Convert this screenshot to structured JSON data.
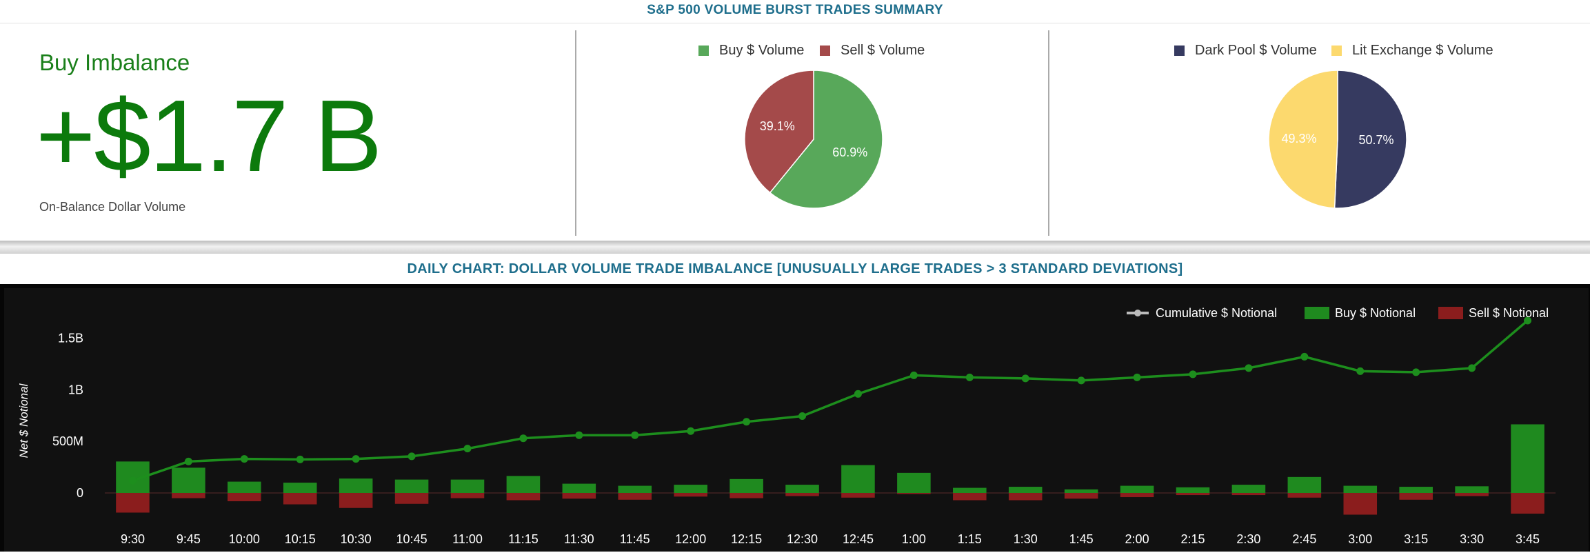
{
  "header": {
    "title": "S&P 500 VOLUME BURST TRADES SUMMARY"
  },
  "kpi": {
    "label": "Buy Imbalance",
    "value": "+$1.7 B",
    "sublabel": "On-Balance Dollar Volume"
  },
  "colors": {
    "title": "#1e6e8c",
    "buy": "#58a85a",
    "sell": "#a44a4a",
    "dark_pool": "#363a60",
    "lit_exchange": "#fcd96e",
    "kpi_green": "#0c7a0c",
    "chart_bg": "#111111",
    "bar_buy": "#1f8a1f",
    "bar_sell": "#8b1d1d",
    "line": "#1d8e1d"
  },
  "pie_buy_sell": {
    "legend": [
      "Buy $ Volume",
      "Sell $ Volume"
    ],
    "labels": [
      "60.9%",
      "39.1%"
    ]
  },
  "pie_venue": {
    "legend": [
      "Dark Pool $ Volume",
      "Lit Exchange $ Volume"
    ],
    "labels": [
      "50.7%",
      "49.3%"
    ]
  },
  "bottom": {
    "title": "DAILY CHART: DOLLAR VOLUME TRADE IMBALANCE [UNUSUALLY LARGE TRADES > 3 STANDARD DEVIATIONS]"
  },
  "chart_data": [
    {
      "type": "pie",
      "categories": [
        "Buy $ Volume",
        "Sell $ Volume"
      ],
      "values": [
        60.9,
        39.1
      ],
      "labels": [
        "60.9%",
        "39.1%"
      ],
      "legend_position": "top"
    },
    {
      "type": "pie",
      "categories": [
        "Dark Pool $ Volume",
        "Lit Exchange $ Volume"
      ],
      "values": [
        50.7,
        49.3
      ],
      "labels": [
        "50.7%",
        "49.3%"
      ],
      "legend_position": "top"
    },
    {
      "type": "bar",
      "ylabel": "Net $ Notional",
      "xlabel": "",
      "yticks": [
        "0",
        "500M",
        "1B",
        "1.5B"
      ],
      "ytick_values": [
        0,
        500000000,
        1000000000,
        1500000000
      ],
      "ylim": [
        -220000000,
        1750000000
      ],
      "grid": false,
      "legend_position": "top-right",
      "categories": [
        "9:30",
        "9:45",
        "10:00",
        "10:15",
        "10:30",
        "10:45",
        "11:00",
        "11:15",
        "11:30",
        "11:45",
        "12:00",
        "12:15",
        "12:30",
        "12:45",
        "1:00",
        "1:15",
        "1:30",
        "1:45",
        "2:00",
        "2:15",
        "2:30",
        "2:45",
        "3:00",
        "3:15",
        "3:30",
        "3:45"
      ],
      "series": [
        {
          "name": "Cumulative $ Notional",
          "type": "line",
          "values": [
            120000000,
            305000000,
            330000000,
            325000000,
            330000000,
            355000000,
            430000000,
            530000000,
            560000000,
            560000000,
            600000000,
            690000000,
            745000000,
            960000000,
            1140000000,
            1120000000,
            1110000000,
            1090000000,
            1120000000,
            1150000000,
            1210000000,
            1320000000,
            1180000000,
            1170000000,
            1210000000,
            1670000000
          ]
        },
        {
          "name": "Buy $ Notional",
          "type": "bar",
          "values": [
            305000000,
            245000000,
            110000000,
            100000000,
            140000000,
            130000000,
            130000000,
            165000000,
            90000000,
            70000000,
            80000000,
            135000000,
            80000000,
            270000000,
            195000000,
            50000000,
            60000000,
            35000000,
            70000000,
            55000000,
            80000000,
            155000000,
            70000000,
            60000000,
            65000000,
            665000000
          ]
        },
        {
          "name": "Sell $ Notional",
          "type": "bar",
          "values": [
            -190000000,
            -50000000,
            -80000000,
            -110000000,
            -145000000,
            -105000000,
            -50000000,
            -70000000,
            -55000000,
            -65000000,
            -35000000,
            -50000000,
            -30000000,
            -45000000,
            -10000000,
            -70000000,
            -70000000,
            -55000000,
            -40000000,
            -20000000,
            -20000000,
            -45000000,
            -210000000,
            -65000000,
            -30000000,
            -200000000
          ]
        }
      ]
    }
  ]
}
